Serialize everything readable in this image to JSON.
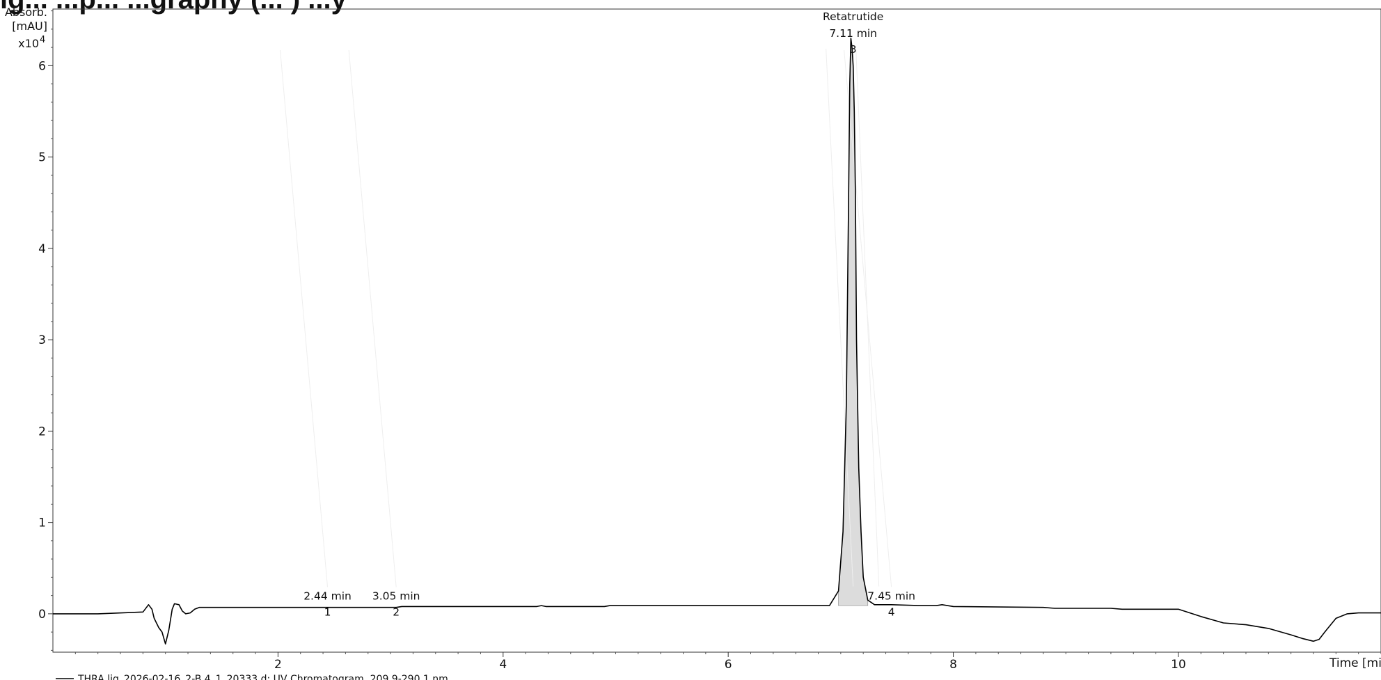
{
  "chart_data": {
    "type": "line",
    "title": "ig... ...p... ...graphy (... ) ...y",
    "ylabel": [
      "Absorb.",
      "[mAU]"
    ],
    "y_multiplier": "x10",
    "y_exponent": "4",
    "xlabel": "Time [min]",
    "xlim": [
      0.0,
      11.8
    ],
    "ylim": [
      -0.42,
      6.62
    ],
    "x_ticks": [
      2,
      4,
      6,
      8,
      10
    ],
    "x_tick_labels": [
      "2",
      "4",
      "6",
      "8",
      "10"
    ],
    "y_ticks": [
      0,
      1,
      2,
      3,
      4,
      5,
      6
    ],
    "y_tick_labels": [
      "0",
      "1",
      "2",
      "3",
      "4",
      "5",
      "6"
    ],
    "grid": false,
    "legend_text": "THRA lig_2026-02-16_2-B 4_1_20333.d: UV Chromatogram, 209.9-290.1 nm",
    "legend_placement": "bottom-left",
    "colors": {
      "trace": "#000000",
      "peak_fill": "#dcdcdc",
      "frame": "#333333"
    },
    "series": [
      {
        "x": [
          0.0,
          0.4,
          0.8,
          0.85,
          0.88,
          0.9,
          0.94,
          0.97,
          1.0,
          1.03,
          1.06,
          1.08,
          1.12,
          1.15,
          1.18,
          1.22,
          1.26,
          1.3,
          1.35,
          1.4,
          1.7,
          2.0,
          2.44,
          2.8,
          3.05,
          3.1,
          3.2,
          3.5,
          4.0,
          4.3,
          4.34,
          4.38,
          4.8,
          4.9,
          4.95,
          5.0,
          5.5,
          6.0,
          6.5,
          6.9,
          6.98,
          7.02,
          7.05,
          7.07,
          7.08,
          7.09,
          7.1,
          7.11,
          7.12,
          7.13,
          7.14,
          7.16,
          7.18,
          7.2,
          7.24,
          7.3,
          7.35,
          7.45,
          7.7,
          7.85,
          7.9,
          8.0,
          8.8,
          8.9,
          9.4,
          9.5,
          10.0,
          10.2,
          10.4,
          10.6,
          10.8,
          11.0,
          11.1,
          11.2,
          11.25,
          11.3,
          11.4,
          11.5,
          11.6,
          11.7,
          11.8
        ],
        "y": [
          0.0,
          0.0,
          0.02,
          0.1,
          0.05,
          -0.05,
          -0.15,
          -0.2,
          -0.33,
          -0.18,
          0.05,
          0.11,
          0.1,
          0.03,
          0.0,
          0.01,
          0.05,
          0.07,
          0.07,
          0.07,
          0.07,
          0.07,
          0.07,
          0.07,
          0.07,
          0.08,
          0.08,
          0.08,
          0.08,
          0.08,
          0.09,
          0.08,
          0.08,
          0.08,
          0.09,
          0.09,
          0.09,
          0.09,
          0.09,
          0.09,
          0.25,
          0.9,
          2.3,
          4.6,
          5.8,
          6.3,
          6.2,
          6.0,
          5.5,
          4.6,
          3.0,
          1.6,
          0.9,
          0.4,
          0.15,
          0.1,
          0.1,
          0.1,
          0.09,
          0.09,
          0.1,
          0.08,
          0.07,
          0.06,
          0.06,
          0.05,
          0.05,
          -0.03,
          -0.1,
          -0.12,
          -0.16,
          -0.23,
          -0.27,
          -0.3,
          -0.28,
          -0.2,
          -0.05,
          0.0,
          0.01,
          0.01,
          0.01
        ]
      }
    ],
    "peaks": [
      {
        "number": "1",
        "time": 2.44,
        "label": "2.44 min",
        "name": ""
      },
      {
        "number": "2",
        "time": 3.05,
        "label": "3.05 min",
        "name": ""
      },
      {
        "number": "3",
        "time": 7.11,
        "label": "7.11 min",
        "name": "Retatrutide"
      },
      {
        "number": "4",
        "time": 7.45,
        "label": "7.45 min",
        "name": ""
      }
    ]
  }
}
